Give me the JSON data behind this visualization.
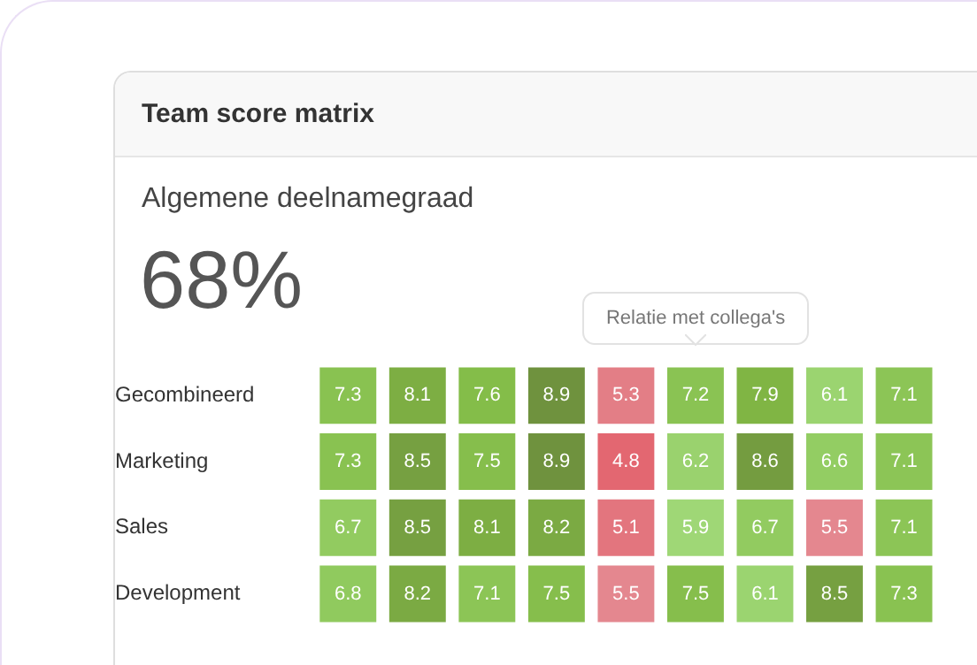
{
  "chart_data": {
    "type": "heatmap",
    "title": "Team score matrix",
    "subtitle": "Algemene deelnamegraad",
    "annotations": [
      "68%",
      "Relatie met collega's"
    ],
    "categories": [
      null,
      null,
      null,
      null,
      null,
      null,
      null,
      null,
      null
    ],
    "y_categories": [
      "Gecombineerd",
      "Marketing",
      "Sales",
      "Development"
    ],
    "cells": [
      [
        7.3,
        8.1,
        7.6,
        8.9,
        5.3,
        7.2,
        7.9,
        6.1,
        7.1
      ],
      [
        7.3,
        8.5,
        7.5,
        8.9,
        4.8,
        6.2,
        8.6,
        6.6,
        7.1
      ],
      [
        6.7,
        8.5,
        8.1,
        8.2,
        5.1,
        5.9,
        6.7,
        5.5,
        7.1
      ],
      [
        6.8,
        8.2,
        7.1,
        7.5,
        5.5,
        7.5,
        6.1,
        8.5,
        7.3
      ]
    ],
    "data_labels": true,
    "tick_labels": "y",
    "grid": false
  }
}
